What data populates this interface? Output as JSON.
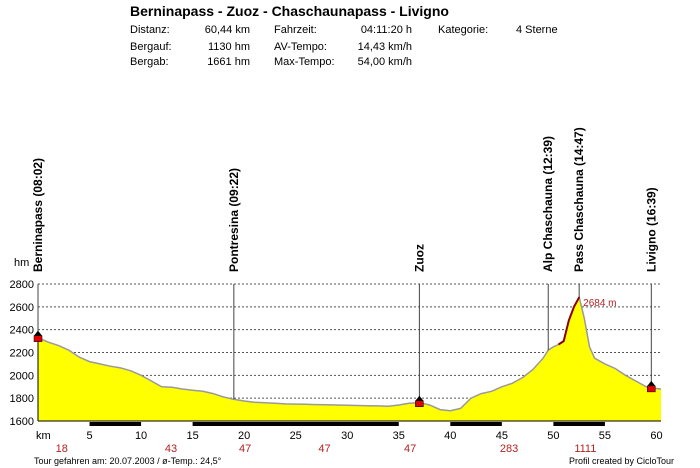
{
  "header": {
    "title": "Berninapass - Zuoz - Chaschaunapass - Livigno",
    "stats": [
      {
        "label": "Distanz:",
        "value": "60,44 km"
      },
      {
        "label": "Fahrzeit:",
        "value": "04:11:20 h"
      },
      {
        "label": "Kategorie:",
        "value": "4 Sterne"
      },
      {
        "label": "Bergauf:",
        "value": "1130 hm"
      },
      {
        "label": "AV-Tempo:",
        "value": "14,43 km/h"
      },
      {
        "label": "Bergab:",
        "value": "1661 hm"
      },
      {
        "label": "Max-Tempo:",
        "value": "54,00 km/h"
      }
    ]
  },
  "chart_data": {
    "type": "area",
    "xlabel": "km",
    "ylabel": "hm",
    "xlim": [
      0,
      60.44
    ],
    "ylim": [
      1600,
      2800
    ],
    "x_ticks": [
      5,
      10,
      15,
      20,
      25,
      30,
      35,
      40,
      45,
      50,
      55,
      60
    ],
    "y_ticks": [
      1600,
      1800,
      2000,
      2200,
      2400,
      2600,
      2800
    ],
    "grid": "horizontal dotted",
    "fill_color": "#ffff00",
    "line_color": "#9a9a9a",
    "steep_color": "#8b0000",
    "profile": {
      "x": [
        0,
        0.5,
        1,
        2,
        3,
        4,
        5,
        6,
        7,
        8,
        9,
        10,
        11,
        12,
        13,
        14,
        15,
        16,
        17,
        18,
        19,
        20,
        21,
        22,
        23,
        24,
        25,
        26,
        27,
        28,
        29,
        30,
        31,
        32,
        33,
        34,
        35,
        36,
        37,
        38,
        39,
        40,
        41,
        42,
        43,
        44,
        45,
        46,
        47,
        48,
        49,
        49.5,
        50,
        50.5,
        51,
        51.5,
        52,
        52.5,
        53,
        53.5,
        54,
        55,
        56,
        57,
        58,
        59,
        59.5,
        60,
        60.44
      ],
      "y": [
        2330,
        2310,
        2290,
        2260,
        2220,
        2160,
        2120,
        2100,
        2080,
        2065,
        2040,
        2000,
        1950,
        1900,
        1895,
        1880,
        1870,
        1860,
        1840,
        1810,
        1790,
        1775,
        1765,
        1760,
        1755,
        1750,
        1748,
        1746,
        1744,
        1742,
        1740,
        1738,
        1736,
        1734,
        1732,
        1730,
        1740,
        1755,
        1760,
        1740,
        1700,
        1690,
        1710,
        1800,
        1840,
        1860,
        1900,
        1930,
        1980,
        2050,
        2150,
        2220,
        2250,
        2270,
        2300,
        2480,
        2600,
        2684,
        2500,
        2250,
        2150,
        2100,
        2060,
        2000,
        1950,
        1900,
        1890,
        1885,
        1880
      ]
    },
    "max_label": "2684 m",
    "waypoints": [
      {
        "name": "Berninapass (08:02)",
        "km": 0,
        "hm": 2330
      },
      {
        "name": "Pontresina (09:22)",
        "km": 19,
        "hm": 1790
      },
      {
        "name": "Zuoz",
        "km": 37,
        "hm": 1760
      },
      {
        "name": "Alp Chaschauna (12:39)",
        "km": 49.5,
        "hm": 2220
      },
      {
        "name": "Pass Chaschauna (14:47)",
        "km": 52.5,
        "hm": 2684
      },
      {
        "name": "Livigno (16:39)",
        "km": 59.5,
        "hm": 1890
      }
    ],
    "markers_km": [
      0,
      37,
      59.5
    ],
    "gradient_labels": [
      {
        "km": 2.3,
        "value": "18"
      },
      {
        "km": 12.9,
        "value": "43"
      },
      {
        "km": 20.1,
        "value": "47"
      },
      {
        "km": 27.8,
        "value": "47"
      },
      {
        "km": 36.1,
        "value": "47"
      },
      {
        "km": 45.7,
        "value": "283"
      },
      {
        "km": 53.1,
        "value": "1111"
      }
    ],
    "road_bars": [
      {
        "from": 5,
        "to": 10
      },
      {
        "from": 15,
        "to": 35
      },
      {
        "from": 40,
        "to": 45
      },
      {
        "from": 50,
        "to": 55
      }
    ]
  },
  "footer": {
    "left": "Tour gefahren am: 20.07.2003  /  ø-Temp.: 24,5°",
    "right": "Profil created by CicloTour"
  }
}
